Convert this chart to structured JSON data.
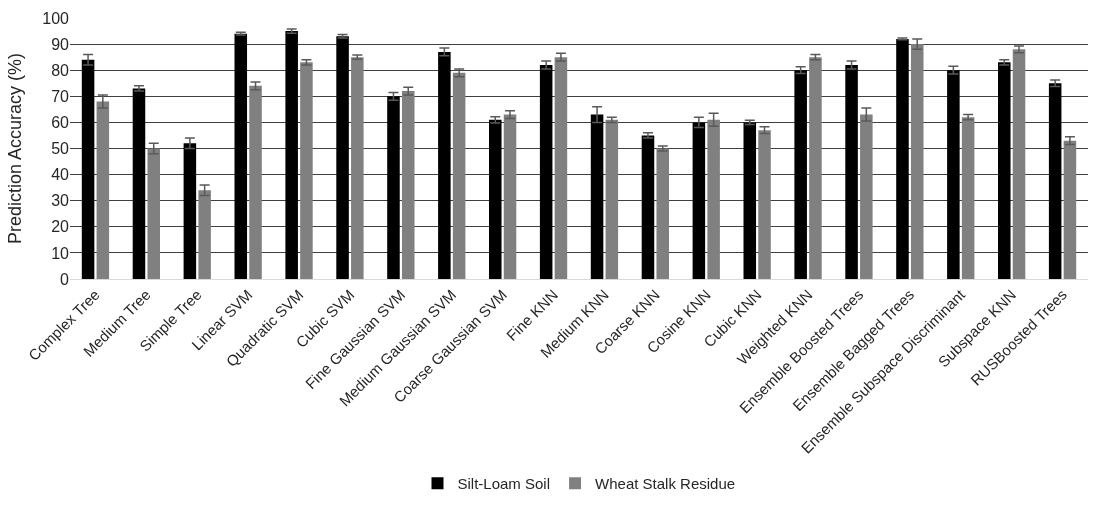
{
  "chart_data": {
    "type": "bar",
    "ylabel": "Prediction Accuracy (%)",
    "categories": [
      "Complex Tree",
      "Medium Tree",
      "Simple Tree",
      "Linear SVM",
      "Quadratic SVM",
      "Cubic SVM",
      "Fine Gaussian SVM",
      "Medium Gaussian SVM",
      "Coarse Gaussian SVM",
      "Fine KNN",
      "Medium KNN",
      "Coarse KNN",
      "Cosine KNN",
      "Cubic KNN",
      "Weighted KNN",
      "Ensemble Boosted Trees",
      "Ensemble Bagged Trees",
      "Ensemble Subspace Discriminant",
      "Subspace KNN",
      "RUSBoosted Trees"
    ],
    "series": [
      {
        "name": "Silt-Loam Soil",
        "color": "#000000",
        "values": [
          84,
          73,
          52,
          94,
          95,
          93,
          70,
          87,
          61,
          82,
          63,
          55,
          60,
          60,
          80,
          82,
          92,
          80,
          83,
          75
        ],
        "errors": [
          2,
          1,
          2,
          0.5,
          0.8,
          0.7,
          1.5,
          1.5,
          1.2,
          1.5,
          3,
          1,
          2,
          0.8,
          1.3,
          1.5,
          0.3,
          1.5,
          1,
          1.2
        ]
      },
      {
        "name": "Wheat Stalk Residue",
        "color": "#808080",
        "values": [
          68,
          50,
          34,
          74,
          83,
          85,
          72,
          79,
          63,
          85,
          61,
          50,
          61,
          57,
          85,
          63,
          90,
          62,
          88,
          53
        ],
        "errors": [
          2.5,
          2,
          2,
          1.5,
          1,
          0.8,
          1.5,
          1.5,
          1.5,
          1.5,
          1,
          1,
          2.5,
          1.3,
          1,
          2.5,
          2,
          1,
          1.3,
          1.5
        ]
      }
    ],
    "ylim": [
      0,
      100
    ],
    "yticks": [
      0,
      10,
      20,
      30,
      40,
      50,
      60,
      70,
      80,
      90,
      100
    ],
    "grid": "y",
    "legend": "bottom"
  }
}
